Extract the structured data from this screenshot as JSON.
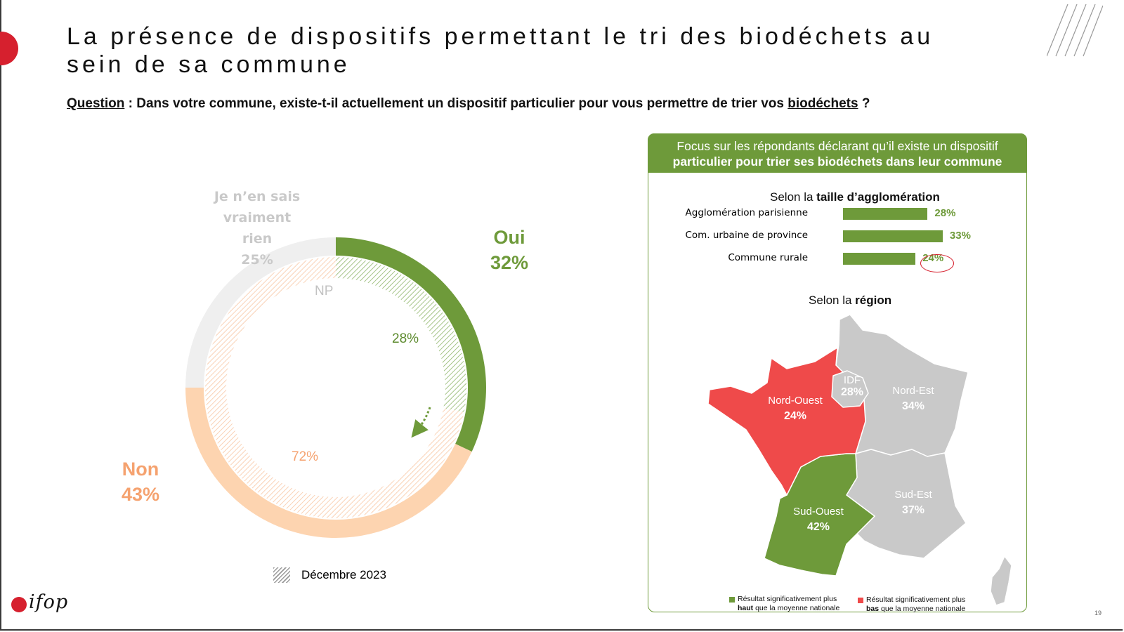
{
  "slide": {
    "title": "La présence de dispositifs permettant le tri des biodéchets au sein de sa commune",
    "question_label": "Question",
    "question_text": " : Dans votre commune, existe-t-il actuellement un dispositif particulier pour vous permettre de trier vos ",
    "question_keyword": "biodéchets",
    "question_end": " ?",
    "page_number": "19",
    "logo_text": "ifop",
    "colors": {
      "green": "#6e9a3a",
      "orange": "#f5a26f",
      "light_orange": "#fdd4b0",
      "grey": "#efefef",
      "red": "#ef4a4a",
      "map_grey": "#c9c9c9",
      "brand_red": "#d6202e"
    }
  },
  "chart_data": [
    {
      "type": "pie",
      "variant": "double-donut",
      "outer_ring": {
        "label": "",
        "slices": [
          {
            "name": "Oui",
            "value": 32,
            "color": "#6e9a3a"
          },
          {
            "name": "Non",
            "value": 43,
            "color": "#fdd4b0"
          },
          {
            "name": "Je n’en sais vraiment rien",
            "value": 25,
            "color": "#efefef"
          }
        ]
      },
      "inner_ring": {
        "label": "Décembre 2023",
        "pattern": "hatched",
        "slices": [
          {
            "name": "Oui",
            "value": 28,
            "color": "#6e9a3a"
          },
          {
            "name": "Non",
            "value": 72,
            "color": "#f5a26f"
          }
        ],
        "extra_label": "NP"
      },
      "labels": {
        "oui_name": "Oui",
        "oui_value": "32%",
        "non_name": "Non",
        "non_value": "43%",
        "np_name_line1": "Je n’en sais",
        "np_name_line2": "vraiment rien",
        "np_value": "25%",
        "inner_np": "NP",
        "inner_oui": "28%",
        "inner_non": "72%"
      },
      "legend": [
        {
          "label": "Décembre 2023",
          "style": "hatched"
        }
      ]
    },
    {
      "type": "bar",
      "orientation": "horizontal",
      "title_prefix": "Selon la ",
      "title_bold": "taille d’agglomération",
      "categories": [
        "Agglomération parisienne",
        "Com. urbaine de province",
        "Commune rurale"
      ],
      "values": [
        28,
        33,
        24
      ],
      "value_labels": [
        "28%",
        "33%",
        "24%"
      ],
      "highlight": [
        "none",
        "none",
        "lower"
      ]
    },
    {
      "type": "map",
      "title_prefix": "Selon la ",
      "title_bold": "région",
      "regions": [
        {
          "name": "IDF",
          "value": 28,
          "label": "28%",
          "significance": "none"
        },
        {
          "name": "Nord-Est",
          "value": 34,
          "label": "34%",
          "significance": "none"
        },
        {
          "name": "Nord-Ouest",
          "value": 24,
          "label": "24%",
          "significance": "lower"
        },
        {
          "name": "Sud-Ouest",
          "value": 42,
          "label": "42%",
          "significance": "higher"
        },
        {
          "name": "Sud-Est",
          "value": 37,
          "label": "37%",
          "significance": "none"
        }
      ],
      "legend": [
        {
          "line1": "Résultat significativement plus",
          "bold": "haut",
          "rest": " que la moyenne nationale",
          "color": "#6e9a3a"
        },
        {
          "line1": "Résultat significativement plus",
          "bold": "bas",
          "rest": " que la moyenne nationale",
          "color": "#ef4a4a"
        }
      ]
    }
  ],
  "panel": {
    "head_line1": "Focus sur les répondants déclarant qu’il existe un dispositif",
    "head_line2": "particulier pour trier ses biodéchets dans leur commune"
  }
}
